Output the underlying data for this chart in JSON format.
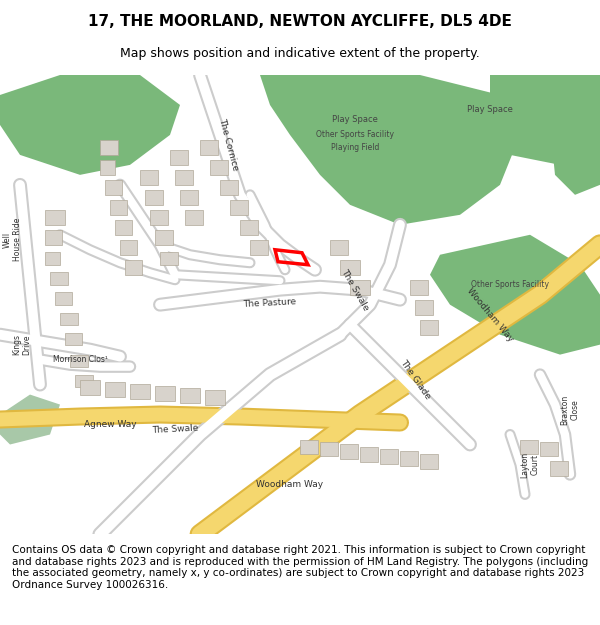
{
  "title": "17, THE MOORLAND, NEWTON AYCLIFFE, DL5 4DE",
  "subtitle": "Map shows position and indicative extent of the property.",
  "footer": "Contains OS data © Crown copyright and database right 2021. This information is subject to Crown copyright and database rights 2023 and is reproduced with the permission of HM Land Registry. The polygons (including the associated geometry, namely x, y co-ordinates) are subject to Crown copyright and database rights 2023 Ordnance Survey 100026316.",
  "bg_color": "#f0ede8",
  "road_color": "#ffffff",
  "road_outline_color": "#cccccc",
  "yellow_road_color": "#f5d76e",
  "yellow_road_outline": "#e0b840",
  "green_area_color": "#7ab87a",
  "green_area_dark": "#5a9a5a",
  "building_color": "#d8d3cc",
  "building_outline": "#b0a898",
  "highlight_color": "#ff0000",
  "highlight_fill": "none",
  "title_fontsize": 11,
  "subtitle_fontsize": 9,
  "footer_fontsize": 7.5,
  "map_bg": "#f2efe9"
}
